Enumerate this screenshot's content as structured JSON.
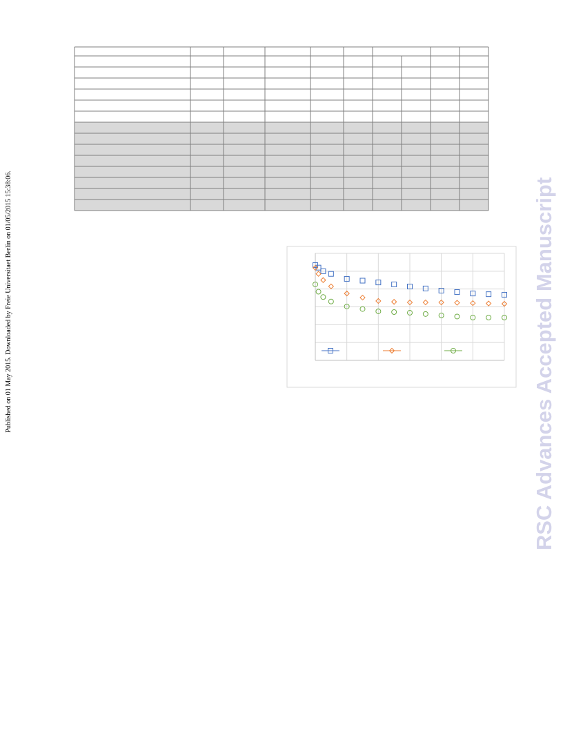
{
  "side_note": "Published on 01 May 2015. Downloaded by Freie Universitaet Berlin on 01/05/2015 15:38:06.",
  "watermark": "RSC Advances Accepted Manuscript",
  "chart_data": {
    "type": "scatter",
    "xlim": [
      0,
      6
    ],
    "ylim": [
      0,
      6
    ],
    "grid": true,
    "x": [
      0,
      0.1,
      0.25,
      0.5,
      1,
      1.5,
      2,
      2.5,
      3,
      3.5,
      4,
      4.5,
      5,
      5.5,
      6
    ],
    "series": [
      {
        "color": "#4472c4",
        "marker": "square",
        "values": [
          5.34,
          5.2,
          5.0,
          4.85,
          4.57,
          4.47,
          4.37,
          4.26,
          4.14,
          4.03,
          3.91,
          3.83,
          3.75,
          3.71,
          3.68
        ]
      },
      {
        "color": "#ed7d31",
        "marker": "diamond",
        "values": [
          5.19,
          4.85,
          4.5,
          4.15,
          3.75,
          3.52,
          3.33,
          3.28,
          3.25,
          3.25,
          3.25,
          3.23,
          3.21,
          3.19,
          3.17
        ]
      },
      {
        "color": "#70ad47",
        "marker": "circle",
        "values": [
          4.26,
          3.85,
          3.55,
          3.3,
          3.02,
          2.88,
          2.75,
          2.71,
          2.67,
          2.6,
          2.52,
          2.46,
          2.4,
          2.4,
          2.4
        ]
      }
    ]
  }
}
